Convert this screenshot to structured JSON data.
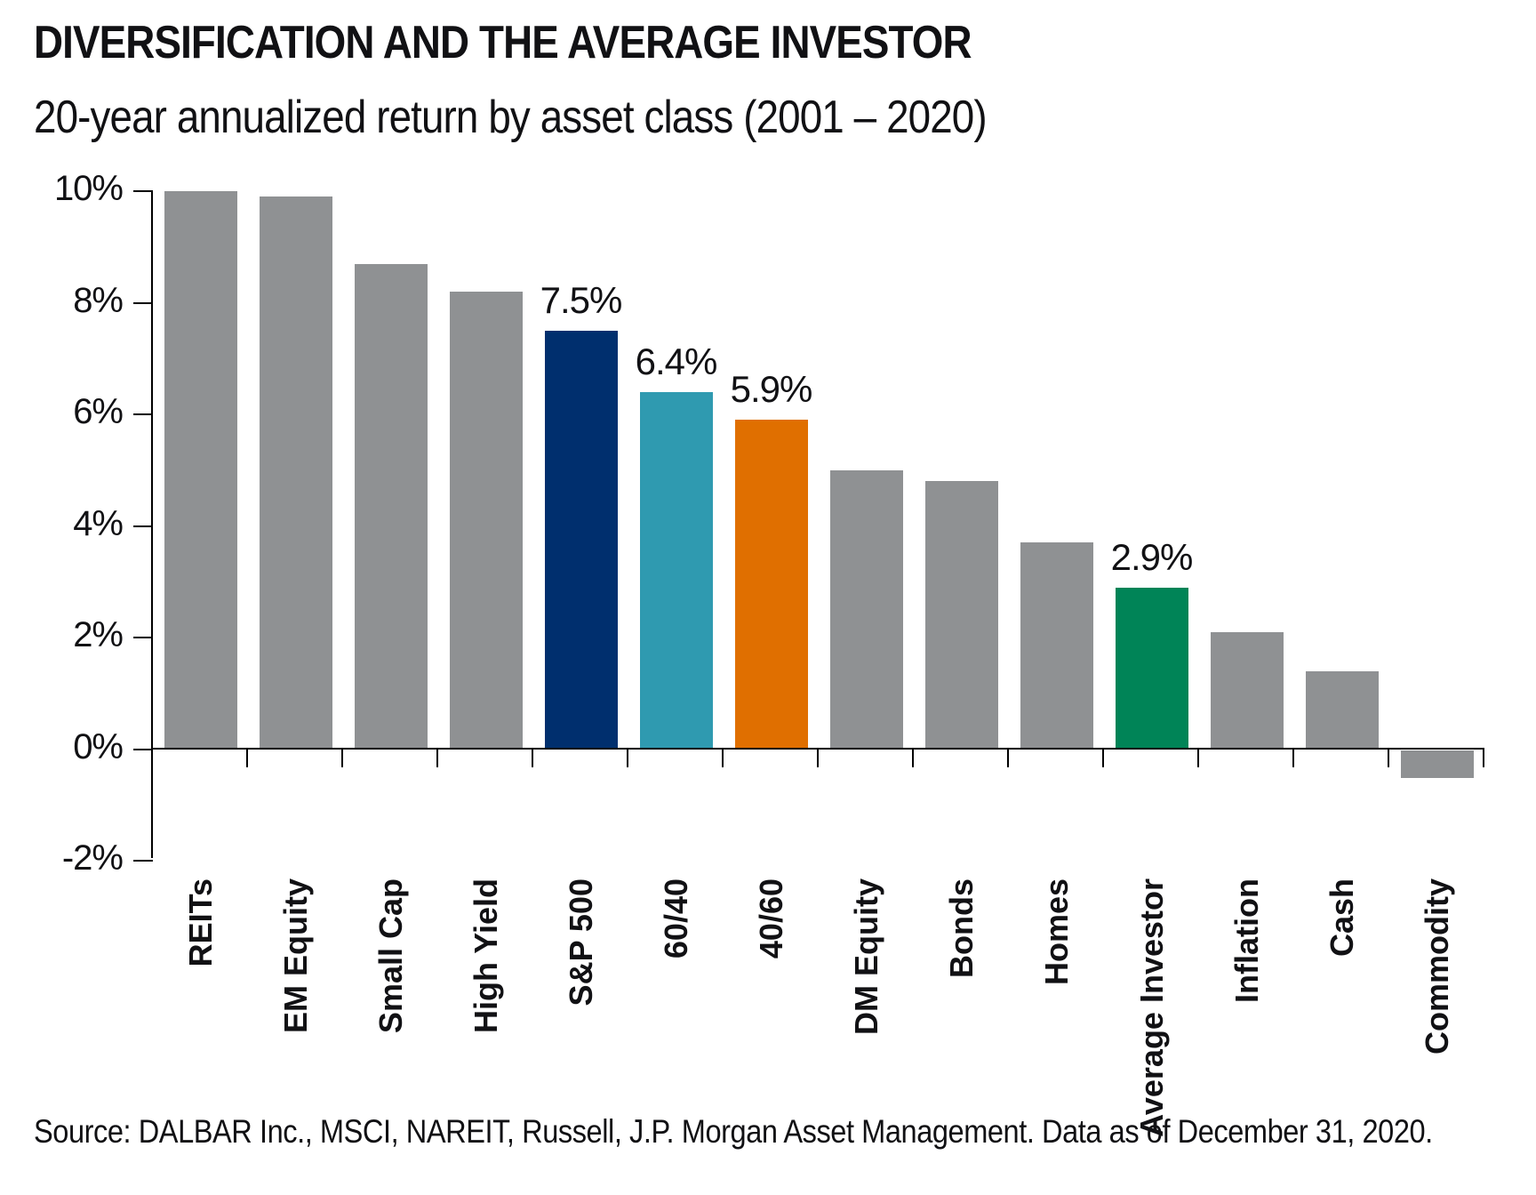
{
  "header": {
    "title": "DIVERSIFICATION AND THE AVERAGE INVESTOR",
    "subtitle": "20-year annualized return by asset class (2001 – 2020)"
  },
  "footer": {
    "source": "Source: DALBAR Inc., MSCI, NAREIT, Russell, J.P. Morgan Asset Management. Data as of December 31, 2020."
  },
  "colors": {
    "bar_default": "#8f9193",
    "navy": "#002f6e",
    "teal": "#2f9ab0",
    "orange": "#e06f00",
    "green": "#008457",
    "axis": "#000000",
    "text": "#111114",
    "background": "#ffffff"
  },
  "chart_data": {
    "type": "bar",
    "title": "DIVERSIFICATION AND THE AVERAGE INVESTOR",
    "subtitle": "20-year annualized return by asset class (2001 – 2020)",
    "categories": [
      "REITs",
      "EM Equity",
      "Small Cap",
      "High Yield",
      "S&P 500",
      "60/40",
      "40/60",
      "DM Equity",
      "Bonds",
      "Homes",
      "Average Investor",
      "Inflation",
      "Cash",
      "Commodity"
    ],
    "values": [
      10.0,
      9.9,
      8.7,
      8.2,
      7.5,
      6.4,
      5.9,
      5.0,
      4.8,
      3.7,
      2.9,
      2.1,
      1.4,
      -0.5
    ],
    "bar_colors": [
      "#8f9193",
      "#8f9193",
      "#8f9193",
      "#8f9193",
      "#002f6e",
      "#2f9ab0",
      "#e06f00",
      "#8f9193",
      "#8f9193",
      "#8f9193",
      "#008457",
      "#8f9193",
      "#8f9193",
      "#8f9193"
    ],
    "data_labels": [
      "",
      "",
      "",
      "",
      "7.5%",
      "6.4%",
      "5.9%",
      "",
      "",
      "",
      "2.9%",
      "",
      "",
      ""
    ],
    "xlabel": "",
    "ylabel": "",
    "ylim": [
      -2,
      10
    ],
    "ytick_values": [
      10,
      8,
      6,
      4,
      2,
      0,
      -2
    ],
    "ytick_labels": [
      "10%",
      "8%",
      "6%",
      "4%",
      "2%",
      "0%",
      "-2%"
    ],
    "grid": false,
    "legend": null
  }
}
